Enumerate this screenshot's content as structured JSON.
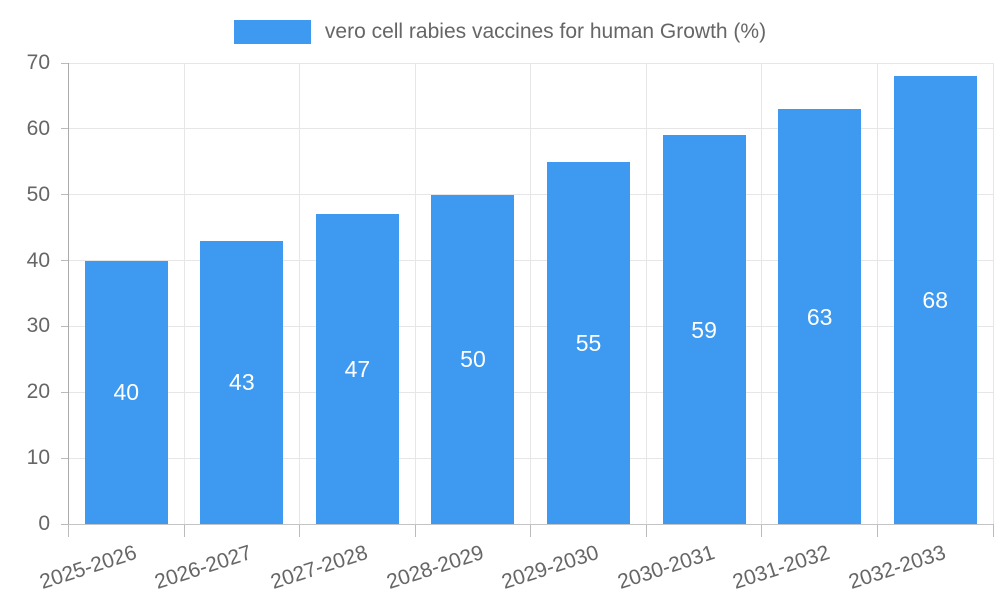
{
  "chart_data": {
    "type": "bar",
    "title": "",
    "legend": {
      "label": "vero cell rabies vaccines for human Growth (%)",
      "position": "top"
    },
    "categories": [
      "2025-2026",
      "2026-2027",
      "2027-2028",
      "2028-2029",
      "2029-2030",
      "2030-2031",
      "2031-2032",
      "2032-2033"
    ],
    "values": [
      40,
      43,
      47,
      50,
      55,
      59,
      63,
      68
    ],
    "value_labels": [
      "40",
      "43",
      "47",
      "50",
      "55",
      "59",
      "63",
      "68"
    ],
    "xlabel": "",
    "ylabel": "",
    "ylim": [
      0,
      70
    ],
    "yticks": [
      0,
      10,
      20,
      30,
      40,
      50,
      60,
      70
    ],
    "grid": true,
    "x_label_rotation_deg": -18,
    "colors": {
      "bar": "#3E99F0",
      "gridline": "#E6E6E6",
      "axis_line": "#ABABAB",
      "tick": "#BBBBBB",
      "axis_text": "#666666",
      "legend_text": "#666666",
      "value_text": "#FFFFFF",
      "background": "#FFFFFF"
    }
  }
}
